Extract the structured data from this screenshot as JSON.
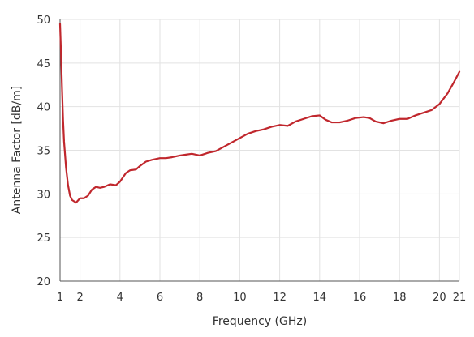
{
  "chart_data": {
    "type": "line",
    "title": "",
    "xlabel": "Frequency (GHz)",
    "ylabel": "Antenna Factor [dB/m]",
    "xlim": [
      1,
      21
    ],
    "ylim": [
      20,
      50
    ],
    "x_ticks": [
      1,
      2,
      4,
      6,
      8,
      10,
      12,
      14,
      16,
      18,
      20,
      21
    ],
    "y_ticks": [
      20,
      25,
      30,
      35,
      40,
      45,
      50
    ],
    "grid": true,
    "line_color": "#c0272d",
    "series": [
      {
        "name": "",
        "points": [
          [
            1.0,
            49.5
          ],
          [
            1.05,
            46.0
          ],
          [
            1.1,
            42.0
          ],
          [
            1.15,
            38.5
          ],
          [
            1.2,
            36.0
          ],
          [
            1.3,
            33.0
          ],
          [
            1.4,
            31.0
          ],
          [
            1.5,
            29.8
          ],
          [
            1.6,
            29.3
          ],
          [
            1.8,
            29.0
          ],
          [
            2.0,
            29.5
          ],
          [
            2.2,
            29.5
          ],
          [
            2.4,
            29.8
          ],
          [
            2.6,
            30.5
          ],
          [
            2.8,
            30.8
          ],
          [
            3.0,
            30.7
          ],
          [
            3.2,
            30.8
          ],
          [
            3.5,
            31.1
          ],
          [
            3.8,
            31.0
          ],
          [
            4.0,
            31.4
          ],
          [
            4.3,
            32.4
          ],
          [
            4.5,
            32.7
          ],
          [
            4.8,
            32.8
          ],
          [
            5.0,
            33.2
          ],
          [
            5.3,
            33.7
          ],
          [
            5.6,
            33.9
          ],
          [
            6.0,
            34.1
          ],
          [
            6.3,
            34.1
          ],
          [
            6.6,
            34.2
          ],
          [
            7.0,
            34.4
          ],
          [
            7.3,
            34.5
          ],
          [
            7.6,
            34.6
          ],
          [
            8.0,
            34.4
          ],
          [
            8.4,
            34.7
          ],
          [
            8.8,
            34.9
          ],
          [
            9.2,
            35.4
          ],
          [
            9.6,
            35.9
          ],
          [
            10.0,
            36.4
          ],
          [
            10.4,
            36.9
          ],
          [
            10.8,
            37.2
          ],
          [
            11.2,
            37.4
          ],
          [
            11.6,
            37.7
          ],
          [
            12.0,
            37.9
          ],
          [
            12.4,
            37.8
          ],
          [
            12.8,
            38.3
          ],
          [
            13.2,
            38.6
          ],
          [
            13.6,
            38.9
          ],
          [
            14.0,
            39.0
          ],
          [
            14.3,
            38.5
          ],
          [
            14.6,
            38.2
          ],
          [
            15.0,
            38.2
          ],
          [
            15.4,
            38.4
          ],
          [
            15.8,
            38.7
          ],
          [
            16.2,
            38.8
          ],
          [
            16.5,
            38.7
          ],
          [
            16.8,
            38.3
          ],
          [
            17.2,
            38.1
          ],
          [
            17.6,
            38.4
          ],
          [
            18.0,
            38.6
          ],
          [
            18.4,
            38.6
          ],
          [
            18.8,
            39.0
          ],
          [
            19.2,
            39.3
          ],
          [
            19.6,
            39.6
          ],
          [
            20.0,
            40.3
          ],
          [
            20.4,
            41.5
          ],
          [
            20.7,
            42.7
          ],
          [
            21.0,
            44.0
          ]
        ]
      }
    ]
  }
}
